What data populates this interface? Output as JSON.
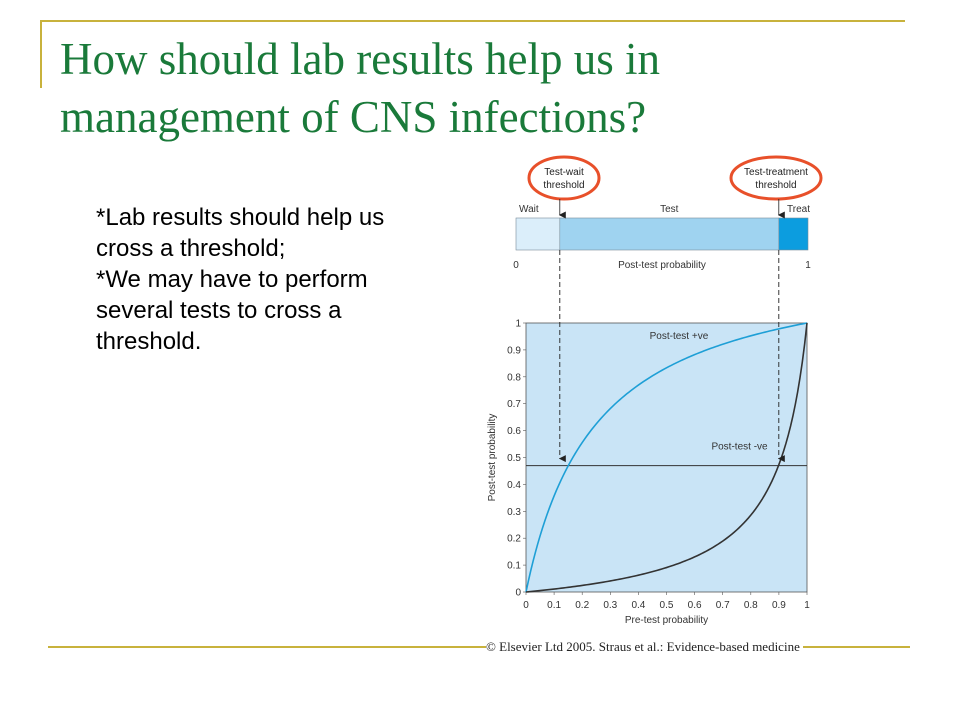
{
  "slide": {
    "title_line1": "How should lab results help us in",
    "title_line2": "management of CNS infections?",
    "bullets": [
      "*Lab results should help us",
      "cross a threshold;",
      "*We may have to perform",
      "several tests to cross a",
      "threshold."
    ],
    "copyright": "© Elsevier Ltd 2005. Straus et al.: Evidence-based medicine",
    "colors": {
      "title": "#1a7a3a",
      "rule": "#c8b23c",
      "highlight_ring": "#e8502a",
      "plot_bg": "#c9e4f6",
      "positive_curve": "#1e9fd6",
      "negative_curve": "#333333"
    }
  },
  "chart_data": [
    {
      "type": "bar",
      "xlabel": "Post-test probability",
      "xlim": [
        0,
        1
      ],
      "tick_labels": [
        "0",
        "1"
      ],
      "zones": [
        {
          "label": "Wait",
          "from": 0,
          "to": 0.15,
          "color": "#dbeefa"
        },
        {
          "label": "Test",
          "from": 0.15,
          "to": 0.9,
          "color": "#9fd3f0"
        },
        {
          "label": "Treat",
          "from": 0.9,
          "to": 1.0,
          "color": "#0c9ddf"
        }
      ],
      "thresholds": [
        {
          "line1": "Test-wait",
          "line2": "threshold",
          "value": 0.15
        },
        {
          "line1": "Test-treatment",
          "line2": "threshold",
          "value": 0.9
        }
      ]
    },
    {
      "type": "line",
      "xlabel": "Pre-test probability",
      "ylabel": "Post-test probability",
      "xlim": [
        0,
        1
      ],
      "ylim": [
        0,
        1
      ],
      "xticks": [
        "0",
        "0.1",
        "0.2",
        "0.3",
        "0.4",
        "0.5",
        "0.6",
        "0.7",
        "0.8",
        "0.9",
        "1"
      ],
      "yticks": [
        "0",
        "0.1",
        "0.2",
        "0.3",
        "0.4",
        "0.5",
        "0.6",
        "0.7",
        "0.8",
        "0.9",
        "1"
      ],
      "threshold_line_y": 0.47,
      "series": [
        {
          "name": "Post-test +ve",
          "likelihood_ratio": 5.0,
          "x": [
            0,
            0.05,
            0.1,
            0.15,
            0.2,
            0.3,
            0.4,
            0.5,
            0.6,
            0.7,
            0.8,
            0.9,
            1.0
          ],
          "y": [
            0,
            0.21,
            0.36,
            0.47,
            0.56,
            0.68,
            0.77,
            0.83,
            0.88,
            0.92,
            0.95,
            0.98,
            1.0
          ]
        },
        {
          "name": "Post-test -ve",
          "likelihood_ratio": 0.1,
          "x": [
            0,
            0.1,
            0.2,
            0.3,
            0.4,
            0.5,
            0.6,
            0.7,
            0.8,
            0.9,
            1.0
          ],
          "y": [
            0,
            0.01,
            0.02,
            0.04,
            0.06,
            0.09,
            0.13,
            0.19,
            0.29,
            0.47,
            1.0
          ]
        }
      ]
    }
  ]
}
